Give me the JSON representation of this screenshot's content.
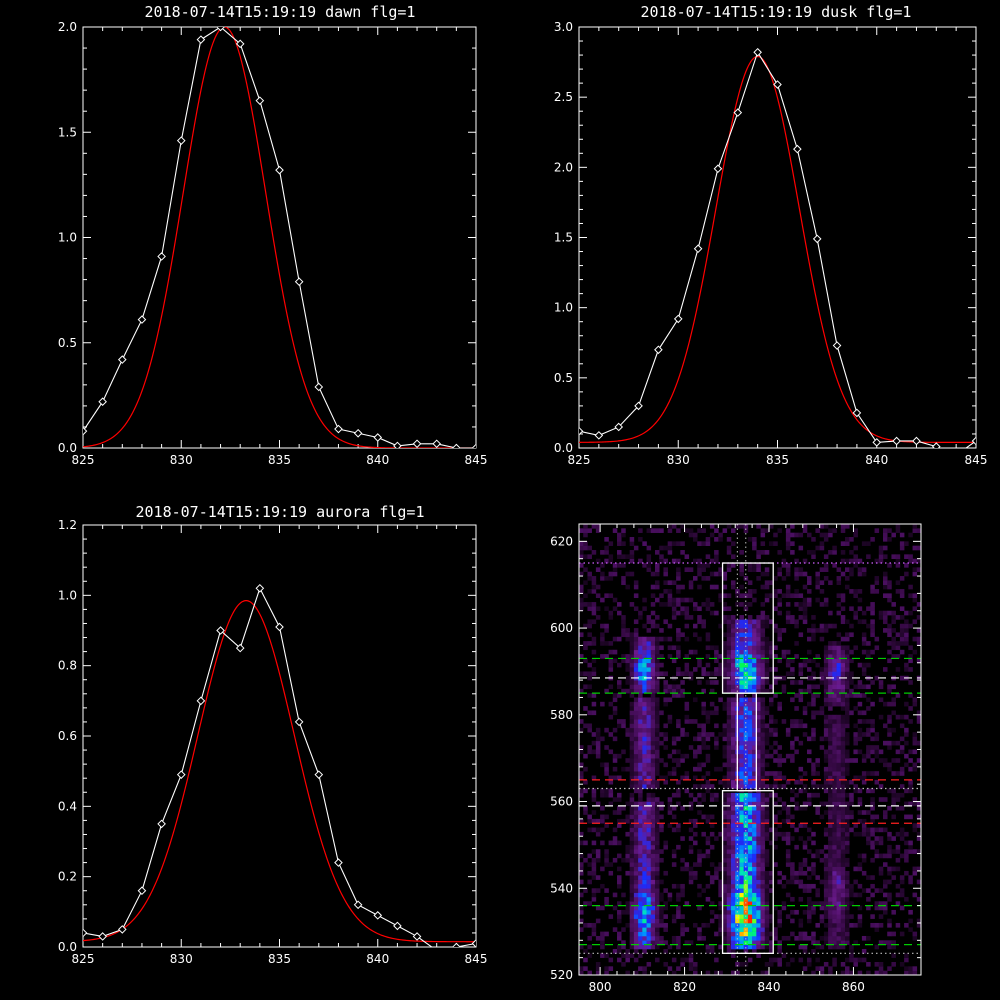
{
  "chart_data": [
    {
      "id": "dawn",
      "type": "line",
      "title": "2018-07-14T15:19:19 dawn flg=1",
      "xlim": [
        825,
        845
      ],
      "ylim": [
        0,
        2.0
      ],
      "xticks": [
        825,
        830,
        835,
        840,
        845
      ],
      "xtick_labels": [
        "825",
        "830",
        "835",
        "840",
        "845"
      ],
      "yticks": [
        0,
        0.5,
        1.0,
        1.5,
        2.0
      ],
      "ytick_labels": [
        "0.0",
        "0.5",
        "1.0",
        "1.5",
        "2.0"
      ],
      "series": [
        {
          "kind": "data",
          "color": "#ffffff",
          "marker": "diamond",
          "x": [
            825,
            826,
            827,
            828,
            829,
            830,
            831,
            832,
            833,
            834,
            835,
            836,
            837,
            838,
            839,
            840,
            841,
            842,
            843,
            844,
            845
          ],
          "y": [
            0.08,
            0.22,
            0.42,
            0.61,
            0.91,
            1.46,
            1.94,
            2.0,
            1.92,
            1.65,
            1.32,
            0.79,
            0.29,
            0.09,
            0.07,
            0.05,
            0.01,
            0.02,
            0.02,
            0.0,
            0.0
          ]
        },
        {
          "kind": "fit",
          "color": "#ff0000",
          "gaussian": {
            "amp": 2.0,
            "center": 832.2,
            "sigma": 2.1,
            "base": 0.0
          }
        }
      ]
    },
    {
      "id": "dusk",
      "type": "line",
      "title": "2018-07-14T15:19:19 dusk flg=1",
      "xlim": [
        825,
        845
      ],
      "ylim": [
        0,
        3.0
      ],
      "xticks": [
        825,
        830,
        835,
        840,
        845
      ],
      "xtick_labels": [
        "825",
        "830",
        "835",
        "840",
        "845"
      ],
      "yticks": [
        0,
        0.5,
        1.0,
        1.5,
        2.0,
        2.5,
        3.0
      ],
      "ytick_labels": [
        "0.0",
        "0.5",
        "1.0",
        "1.5",
        "2.0",
        "2.5",
        "3.0"
      ],
      "series": [
        {
          "kind": "data",
          "color": "#ffffff",
          "marker": "diamond",
          "x": [
            825,
            826,
            827,
            828,
            829,
            830,
            831,
            832,
            833,
            834,
            835,
            836,
            837,
            838,
            839,
            840,
            841,
            842,
            843,
            844,
            845
          ],
          "y": [
            0.12,
            0.09,
            0.15,
            0.3,
            0.7,
            0.92,
            1.42,
            1.99,
            2.39,
            2.82,
            2.59,
            2.13,
            1.49,
            0.73,
            0.25,
            0.04,
            0.05,
            0.05,
            0.01,
            -0.05,
            0.05
          ]
        },
        {
          "kind": "fit",
          "color": "#ff0000",
          "gaussian": {
            "amp": 2.75,
            "center": 834.0,
            "sigma": 2.1,
            "base": 0.04
          }
        }
      ]
    },
    {
      "id": "aurora",
      "type": "line",
      "title": "2018-07-14T15:19:19 aurora flg=1",
      "xlim": [
        825,
        845
      ],
      "ylim": [
        0,
        1.2
      ],
      "xticks": [
        825,
        830,
        835,
        840,
        845
      ],
      "xtick_labels": [
        "825",
        "830",
        "835",
        "840",
        "845"
      ],
      "yticks": [
        0,
        0.2,
        0.4,
        0.6,
        0.8,
        1.0,
        1.2
      ],
      "ytick_labels": [
        "0.0",
        "0.2",
        "0.4",
        "0.6",
        "0.8",
        "1.0",
        "1.2"
      ],
      "series": [
        {
          "kind": "data",
          "color": "#ffffff",
          "marker": "diamond",
          "x": [
            825,
            826,
            827,
            828,
            829,
            830,
            831,
            832,
            833,
            834,
            835,
            836,
            837,
            838,
            839,
            840,
            841,
            842,
            843,
            844,
            845
          ],
          "y": [
            0.04,
            0.03,
            0.05,
            0.16,
            0.35,
            0.49,
            0.7,
            0.9,
            0.85,
            1.02,
            0.91,
            0.64,
            0.49,
            0.24,
            0.12,
            0.09,
            0.06,
            0.03,
            -0.01,
            0.0,
            0.01
          ]
        },
        {
          "kind": "fit",
          "color": "#ff0000",
          "gaussian": {
            "amp": 0.97,
            "center": 833.3,
            "sigma": 2.45,
            "base": 0.015
          }
        }
      ]
    },
    {
      "id": "image",
      "type": "heatmap",
      "xlim": [
        795,
        876
      ],
      "ylim": [
        520,
        624
      ],
      "xticks": [
        800,
        820,
        840,
        860
      ],
      "xtick_labels": [
        "800",
        "820",
        "840",
        "860"
      ],
      "yticks": [
        520,
        540,
        560,
        580,
        600,
        620
      ],
      "ytick_labels": [
        "520",
        "540",
        "560",
        "580",
        "600",
        "620"
      ],
      "colormap": [
        "#000000",
        "#3a0a4a",
        "#6a1a8c",
        "#1a2cff",
        "#0090ff",
        "#00e0c0",
        "#00ff40",
        "#ffff00",
        "#ff2000"
      ],
      "columns": [
        {
          "x": 810.5,
          "width": 6,
          "segments": [
            {
              "y_from": 526,
              "y_to": 560,
              "peak": 0.55,
              "hot_y": 534
            },
            {
              "y_from": 563,
              "y_to": 584,
              "peak": 0.3
            },
            {
              "y_from": 585,
              "y_to": 598,
              "peak": 0.48,
              "hot_y": 590
            }
          ]
        },
        {
          "x": 834.5,
          "width": 8,
          "segments": [
            {
              "y_from": 526,
              "y_to": 562,
              "peak": 1.0,
              "hot_y": 534
            },
            {
              "y_from": 563,
              "y_to": 584,
              "peak": 0.42
            },
            {
              "y_from": 585,
              "y_to": 602,
              "peak": 0.62,
              "hot_y": 590
            }
          ]
        },
        {
          "x": 856.0,
          "width": 6,
          "segments": [
            {
              "y_from": 526,
              "y_to": 580,
              "peak": 0.25,
              "hot_y": 540
            },
            {
              "y_from": 582,
              "y_to": 596,
              "peak": 0.3,
              "hot_y": 590
            }
          ]
        }
      ],
      "boxes": [
        {
          "x0": 829,
          "x1": 841,
          "y0": 525,
          "y1": 562.5,
          "color": "#ffffff"
        },
        {
          "x0": 829,
          "x1": 841,
          "y0": 585,
          "y1": 615,
          "color": "#ffffff"
        },
        {
          "x0": 832.5,
          "x1": 837,
          "y0": 562.5,
          "y1": 585,
          "color": "#ffffff"
        }
      ],
      "hlines": [
        {
          "y": 615,
          "color": "#d060ff",
          "style": "dot"
        },
        {
          "y": 593,
          "color": "#00cc00",
          "style": "dash"
        },
        {
          "y": 588.5,
          "color": "#ffffff",
          "style": "dash"
        },
        {
          "y": 585,
          "color": "#00cc00",
          "style": "dash"
        },
        {
          "y": 565,
          "color": "#ff2020",
          "style": "dash"
        },
        {
          "y": 563,
          "color": "#bbbbbb",
          "style": "dot"
        },
        {
          "y": 559,
          "color": "#ffffff",
          "style": "dash"
        },
        {
          "y": 555,
          "color": "#ff2020",
          "style": "dash"
        },
        {
          "y": 536,
          "color": "#00cc00",
          "style": "dash"
        },
        {
          "y": 527,
          "color": "#00cc00",
          "style": "dash"
        },
        {
          "y": 525,
          "color": "#bbbbbb",
          "style": "dot"
        }
      ],
      "vlines": [
        {
          "x": 832.5,
          "color": "#bbbbbb",
          "style": "dot"
        },
        {
          "x": 834.5,
          "color": "#bbbbbb",
          "style": "dot"
        }
      ]
    }
  ]
}
